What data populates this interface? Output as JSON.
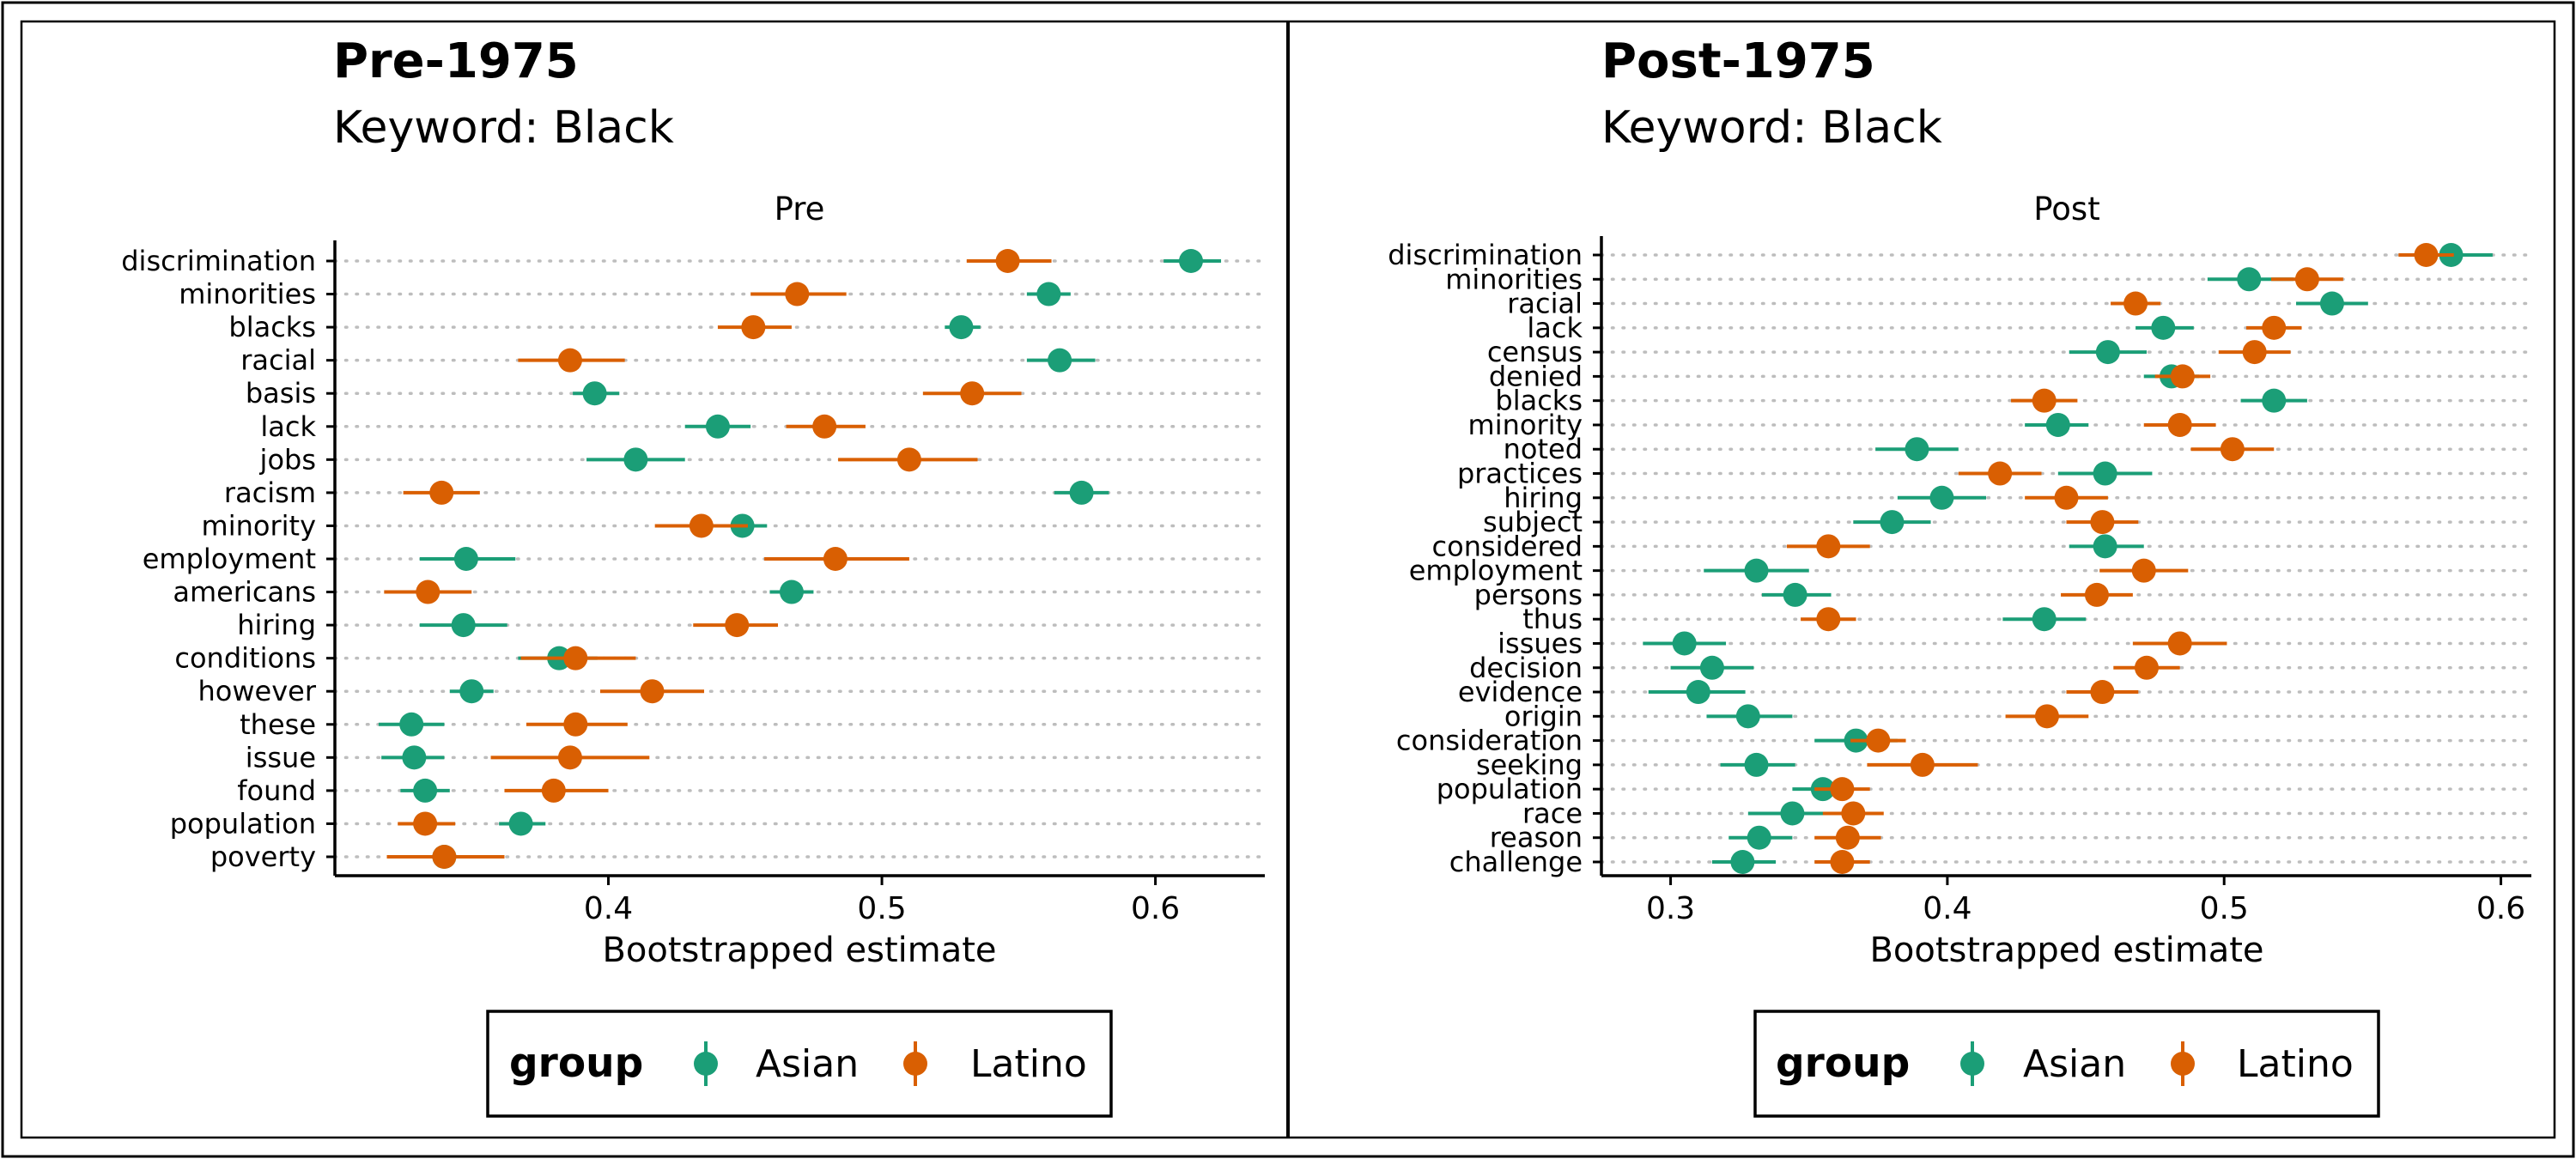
{
  "colors": {
    "Asian": "#1b9e77",
    "Latino": "#d95f02",
    "grid": "#bdbdbd"
  },
  "chart_data": [
    {
      "type": "scatter",
      "title": "Pre-1975",
      "subtitle": "Keyword: Black",
      "facet": "Pre",
      "xlabel": "Bootstrapped estimate",
      "ylabel": "",
      "xlim": [
        0.3,
        0.64
      ],
      "xticks": [
        0.4,
        0.5,
        0.6
      ],
      "xtick_labels": [
        "0.4",
        "0.5",
        "0.6"
      ],
      "grid": "horizontal dotted",
      "legend": {
        "title": "group",
        "position": "bottom",
        "entries": [
          "Asian",
          "Latino"
        ]
      },
      "categories": [
        "discrimination",
        "minorities",
        "blacks",
        "racial",
        "basis",
        "lack",
        "jobs",
        "racism",
        "minority",
        "employment",
        "americans",
        "hiring",
        "conditions",
        "however",
        "these",
        "issue",
        "found",
        "population",
        "poverty"
      ],
      "series": [
        {
          "name": "Asian",
          "values": [
            0.613,
            0.561,
            0.529,
            0.565,
            0.395,
            0.44,
            0.41,
            0.573,
            0.449,
            0.348,
            0.467,
            0.347,
            0.382,
            0.35,
            0.328,
            0.329,
            0.333,
            0.368,
            0.34
          ],
          "ci_low": [
            0.603,
            0.553,
            0.523,
            0.553,
            0.387,
            0.428,
            0.392,
            0.563,
            0.441,
            0.331,
            0.459,
            0.331,
            0.367,
            0.342,
            0.316,
            0.317,
            0.324,
            0.36,
            0.32
          ],
          "ci_high": [
            0.624,
            0.569,
            0.536,
            0.578,
            0.404,
            0.452,
            0.428,
            0.583,
            0.458,
            0.366,
            0.475,
            0.363,
            0.396,
            0.358,
            0.34,
            0.34,
            0.342,
            0.377,
            0.36
          ]
        },
        {
          "name": "Latino",
          "values": [
            0.546,
            0.469,
            0.453,
            0.386,
            0.533,
            0.479,
            0.51,
            0.339,
            0.434,
            0.483,
            0.334,
            0.447,
            0.388,
            0.416,
            0.388,
            0.386,
            0.38,
            0.333,
            0.34
          ],
          "ci_low": [
            0.531,
            0.452,
            0.44,
            0.367,
            0.515,
            0.465,
            0.484,
            0.325,
            0.417,
            0.457,
            0.318,
            0.431,
            0.368,
            0.397,
            0.37,
            0.357,
            0.362,
            0.323,
            0.319
          ],
          "ci_high": [
            0.562,
            0.487,
            0.467,
            0.406,
            0.551,
            0.494,
            0.535,
            0.353,
            0.451,
            0.51,
            0.35,
            0.462,
            0.41,
            0.435,
            0.407,
            0.415,
            0.4,
            0.344,
            0.362
          ]
        }
      ]
    },
    {
      "type": "scatter",
      "title": "Post-1975",
      "subtitle": "Keyword: Black",
      "facet": "Post",
      "xlabel": "Bootstrapped estimate",
      "ylabel": "",
      "xlim": [
        0.275,
        0.611
      ],
      "xticks": [
        0.3,
        0.4,
        0.5,
        0.6
      ],
      "xtick_labels": [
        "0.3",
        "0.4",
        "0.5",
        "0.6"
      ],
      "grid": "horizontal dotted",
      "legend": {
        "title": "group",
        "position": "bottom",
        "entries": [
          "Asian",
          "Latino"
        ]
      },
      "categories": [
        "discrimination",
        "minorities",
        "racial",
        "lack",
        "census",
        "denied",
        "blacks",
        "minority",
        "noted",
        "practices",
        "hiring",
        "subject",
        "considered",
        "employment",
        "persons",
        "thus",
        "issues",
        "decision",
        "evidence",
        "origin",
        "consideration",
        "seeking",
        "population",
        "race",
        "reason",
        "challenge"
      ],
      "series": [
        {
          "name": "Asian",
          "values": [
            0.582,
            0.509,
            0.539,
            0.478,
            0.458,
            0.481,
            0.518,
            0.44,
            0.389,
            0.457,
            0.398,
            0.38,
            0.457,
            0.331,
            0.345,
            0.435,
            0.305,
            0.315,
            0.31,
            0.328,
            0.367,
            0.331,
            0.355,
            0.344,
            0.332,
            0.326
          ],
          "ci_low": [
            0.568,
            0.494,
            0.526,
            0.468,
            0.444,
            0.471,
            0.506,
            0.428,
            0.374,
            0.44,
            0.382,
            0.366,
            0.444,
            0.312,
            0.333,
            0.42,
            0.29,
            0.3,
            0.292,
            0.313,
            0.352,
            0.318,
            0.344,
            0.328,
            0.321,
            0.315
          ],
          "ci_high": [
            0.597,
            0.525,
            0.552,
            0.489,
            0.472,
            0.491,
            0.53,
            0.451,
            0.404,
            0.474,
            0.414,
            0.394,
            0.471,
            0.35,
            0.358,
            0.45,
            0.32,
            0.33,
            0.327,
            0.344,
            0.382,
            0.345,
            0.366,
            0.36,
            0.344,
            0.338
          ]
        },
        {
          "name": "Latino",
          "values": [
            0.573,
            0.53,
            0.468,
            0.518,
            0.511,
            0.485,
            0.435,
            0.484,
            0.503,
            0.419,
            0.443,
            0.456,
            0.357,
            0.471,
            0.454,
            0.357,
            0.484,
            0.472,
            0.456,
            0.436,
            0.375,
            0.391,
            0.362,
            0.366,
            0.364,
            0.362
          ],
          "ci_low": [
            0.563,
            0.517,
            0.459,
            0.508,
            0.498,
            0.475,
            0.423,
            0.471,
            0.488,
            0.404,
            0.428,
            0.443,
            0.342,
            0.455,
            0.441,
            0.347,
            0.467,
            0.46,
            0.443,
            0.421,
            0.365,
            0.371,
            0.352,
            0.355,
            0.352,
            0.352
          ],
          "ci_high": [
            0.583,
            0.543,
            0.477,
            0.528,
            0.524,
            0.495,
            0.447,
            0.497,
            0.518,
            0.434,
            0.458,
            0.469,
            0.372,
            0.487,
            0.467,
            0.367,
            0.501,
            0.484,
            0.469,
            0.451,
            0.385,
            0.411,
            0.372,
            0.377,
            0.376,
            0.372
          ]
        }
      ]
    }
  ]
}
